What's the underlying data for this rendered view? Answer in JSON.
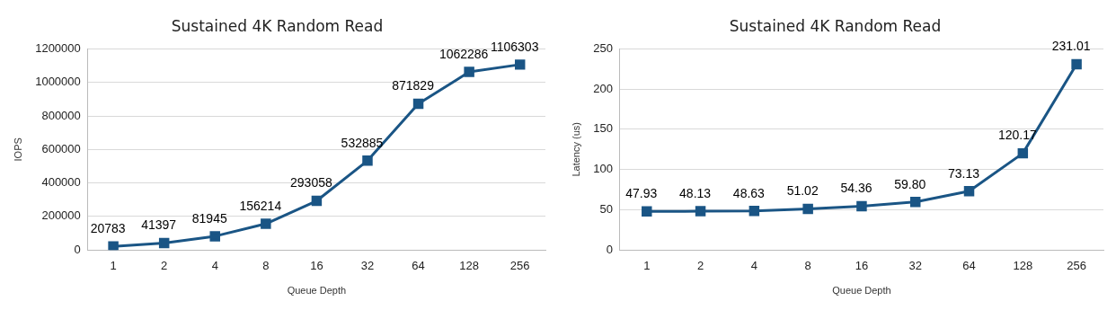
{
  "chart_data": [
    {
      "type": "line",
      "title": "Sustained 4K Random Read",
      "xlabel": "Queue Depth",
      "ylabel": "IOPS",
      "categories": [
        "1",
        "2",
        "4",
        "8",
        "16",
        "32",
        "64",
        "128",
        "256"
      ],
      "series": [
        {
          "color": "#1a5585",
          "values": [
            20783,
            41397,
            81945,
            156214,
            293058,
            532885,
            871829,
            1062286,
            1106303
          ]
        }
      ],
      "ylim": [
        0,
        1200000
      ],
      "yticks": [
        0,
        200000,
        400000,
        600000,
        800000,
        1000000,
        1200000
      ],
      "grid": "y",
      "legend": false,
      "marker": "square",
      "line_style": "solid",
      "data_labels": true
    },
    {
      "type": "line",
      "title": "Sustained 4K Random Read",
      "xlabel": "Queue Depth",
      "ylabel": "Latency (us)",
      "categories": [
        "1",
        "2",
        "4",
        "8",
        "16",
        "32",
        "64",
        "128",
        "256"
      ],
      "series": [
        {
          "color": "#1a5585",
          "values": [
            47.93,
            48.13,
            48.63,
            51.02,
            54.36,
            59.8,
            73.13,
            120.17,
            231.01
          ],
          "value_labels": [
            "47.93",
            "48.13",
            "48.63",
            "51.02",
            "54.36",
            "59.80",
            "73.13",
            "120.17",
            "231.01"
          ]
        }
      ],
      "ylim": [
        0,
        250
      ],
      "yticks": [
        0,
        50,
        100,
        150,
        200,
        250
      ],
      "grid": "y",
      "legend": false,
      "marker": "square",
      "line_style": "solid"
    }
  ]
}
